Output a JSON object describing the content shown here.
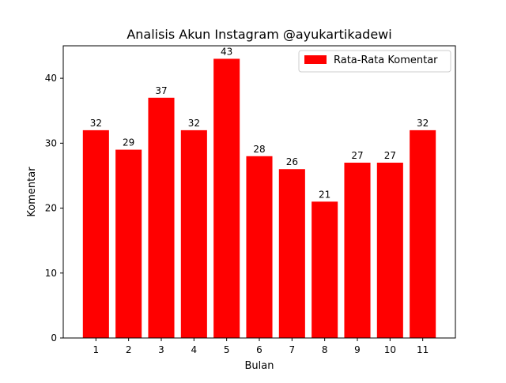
{
  "chart_data": {
    "type": "bar",
    "title": "Analisis Akun Instagram @ayukartikadewi",
    "xlabel": "Bulan",
    "ylabel": "Komentar",
    "categories": [
      "1",
      "2",
      "3",
      "4",
      "5",
      "6",
      "7",
      "8",
      "9",
      "10",
      "11"
    ],
    "series": [
      {
        "name": "Rata-Rata Komentar",
        "values": [
          32,
          29,
          37,
          32,
          43,
          28,
          26,
          21,
          27,
          27,
          32
        ],
        "color": "#ff0000"
      }
    ],
    "data_labels": [
      "32",
      "29",
      "37",
      "32",
      "43",
      "28",
      "26",
      "21",
      "27",
      "27",
      "32"
    ],
    "yticks": [
      "0",
      "10",
      "20",
      "30",
      "40"
    ],
    "ylim": [
      0,
      45
    ],
    "grid": false,
    "legend_position": "top-right"
  }
}
